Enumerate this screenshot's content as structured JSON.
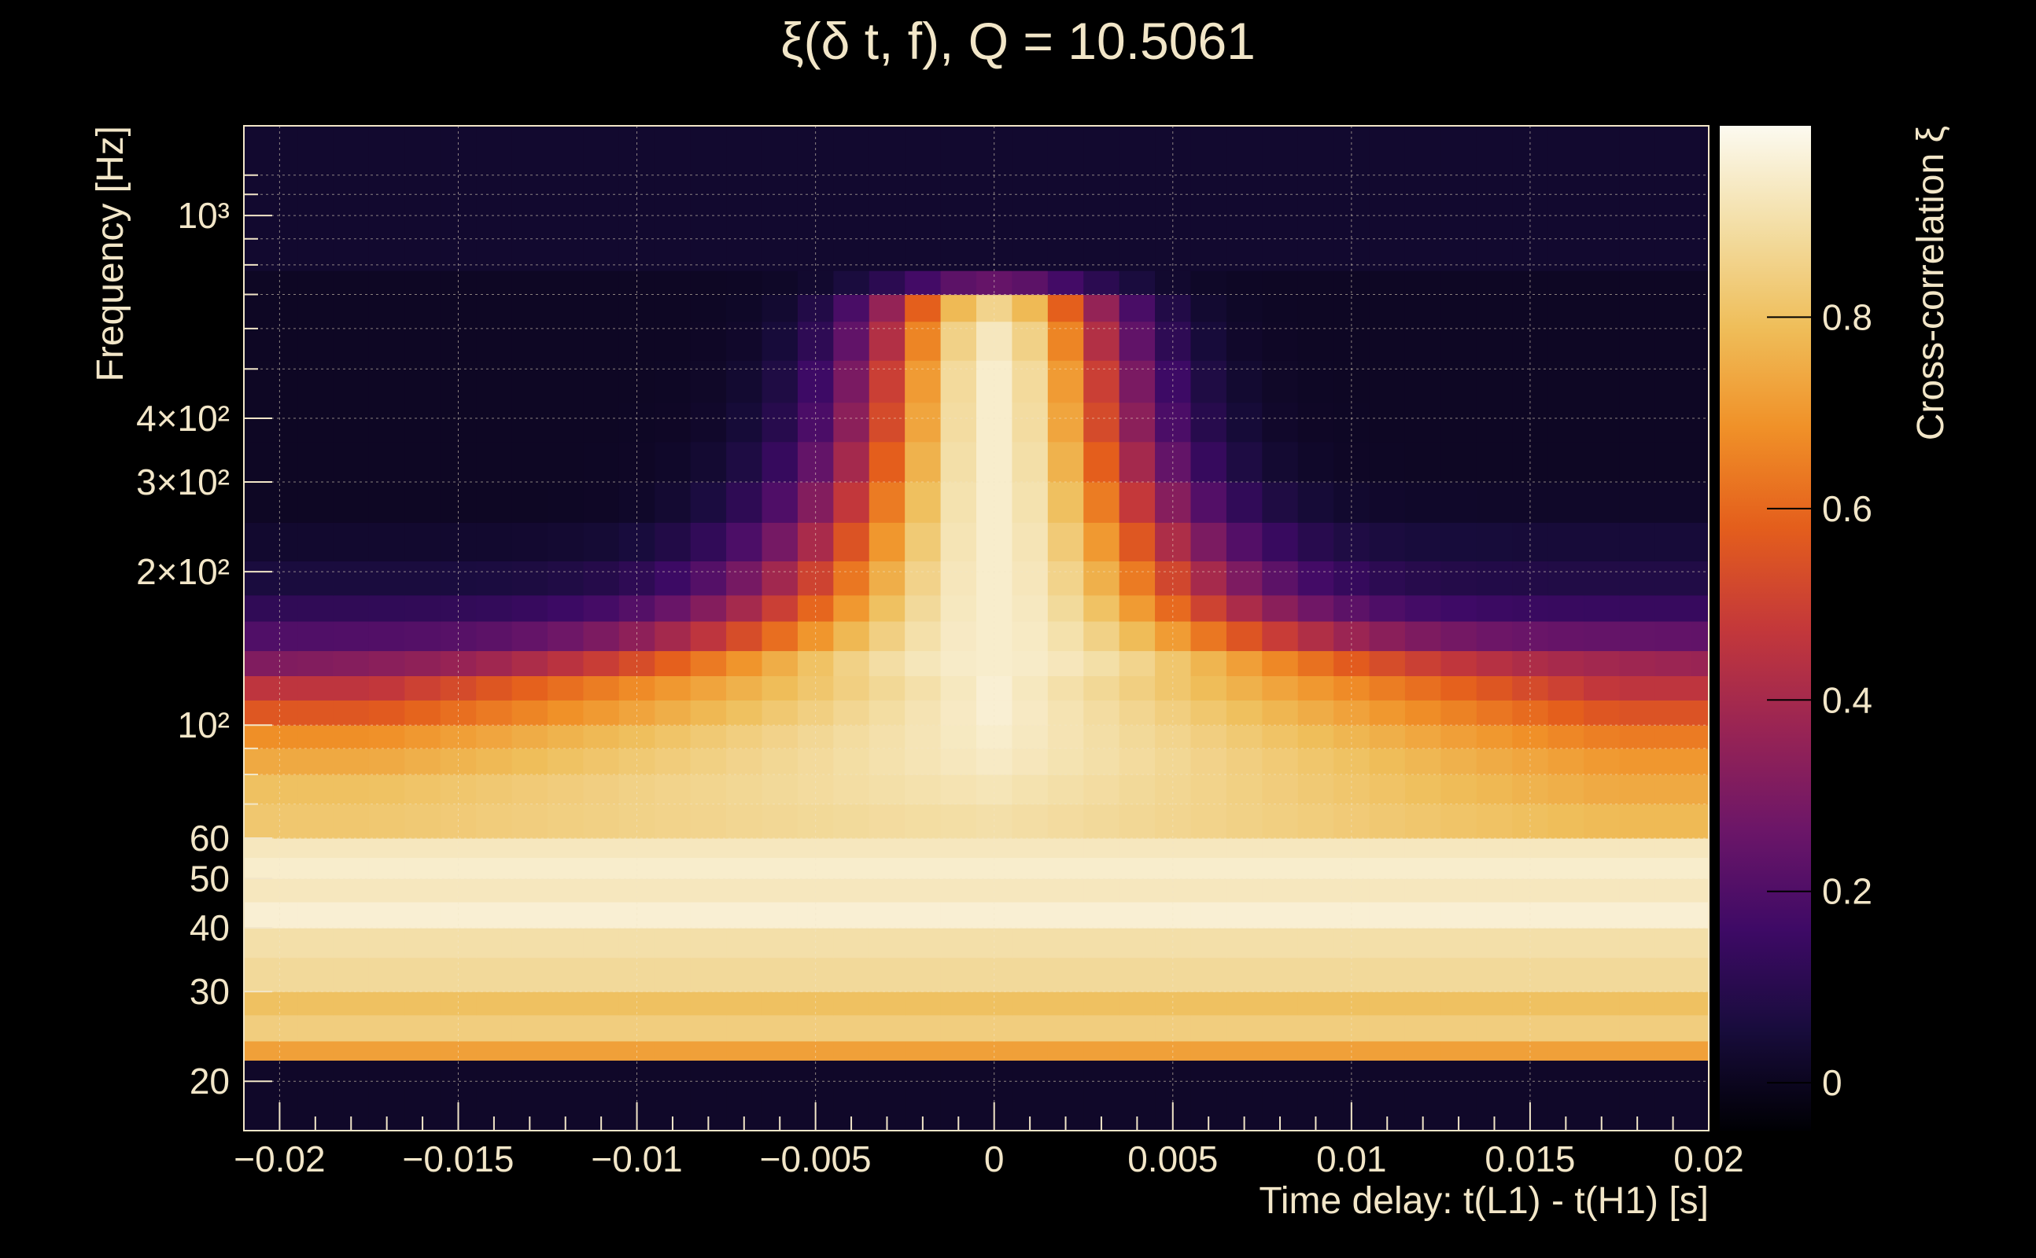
{
  "chart_data": {
    "type": "heatmap",
    "title": "ξ(δ t, f), Q = 10.5061",
    "xlabel": "Time delay: t(L1) - t(H1) [s]",
    "ylabel": "Frequency [Hz]",
    "colorbar_label": "Cross-correlation ξ",
    "xlim": [
      -0.021,
      0.02
    ],
    "ylim": [
      16,
      1500
    ],
    "y_scale": "log",
    "z_range": [
      -0.05,
      1.0
    ],
    "grid": true,
    "x_ticks": [
      {
        "value": -0.02,
        "label": "−0.02"
      },
      {
        "value": -0.015,
        "label": "−0.015"
      },
      {
        "value": -0.01,
        "label": "−0.01"
      },
      {
        "value": -0.005,
        "label": "−0.005"
      },
      {
        "value": 0,
        "label": "0"
      },
      {
        "value": 0.005,
        "label": "0.005"
      },
      {
        "value": 0.01,
        "label": "0.01"
      },
      {
        "value": 0.015,
        "label": "0.015"
      },
      {
        "value": 0.02,
        "label": "0.02"
      }
    ],
    "y_ticks": [
      {
        "value": 20,
        "label": "20"
      },
      {
        "value": 30,
        "label": "30"
      },
      {
        "value": 40,
        "label": "40"
      },
      {
        "value": 50,
        "label": "50"
      },
      {
        "value": 60,
        "label": "60"
      },
      {
        "value": 100,
        "label": "10²"
      },
      {
        "value": 200,
        "label": "2×10²"
      },
      {
        "value": 300,
        "label": "3×10²"
      },
      {
        "value": 400,
        "label": "4×10²"
      },
      {
        "value": 1000,
        "label": "10³"
      }
    ],
    "colorbar_ticks": [
      {
        "value": 0,
        "label": "0"
      },
      {
        "value": 0.2,
        "label": "0.2"
      },
      {
        "value": 0.4,
        "label": "0.4"
      },
      {
        "value": 0.6,
        "label": "0.6"
      },
      {
        "value": 0.8,
        "label": "0.8"
      }
    ],
    "x_bins": [
      -0.02,
      -0.019,
      -0.018,
      -0.017,
      -0.016,
      -0.015,
      -0.014,
      -0.013,
      -0.012,
      -0.011,
      -0.01,
      -0.009,
      -0.008,
      -0.007,
      -0.006,
      -0.005,
      -0.004,
      -0.003,
      -0.002,
      -0.001,
      0,
      0.001,
      0.002,
      0.003,
      0.004,
      0.005,
      0.006,
      0.007,
      0.008,
      0.009,
      0.01,
      0.011,
      0.012,
      0.013,
      0.014,
      0.015,
      0.016,
      0.017,
      0.018,
      0.019,
      0.02
    ],
    "freq_bands": [
      {
        "f_low": 16,
        "f_high": 22,
        "profile": "const",
        "values": [
          0.02
        ]
      },
      {
        "f_low": 22,
        "f_high": 24,
        "profile": "const",
        "values": [
          0.72
        ]
      },
      {
        "f_low": 24,
        "f_high": 27,
        "profile": "const",
        "values": [
          0.84
        ]
      },
      {
        "f_low": 27,
        "f_high": 30,
        "profile": "const",
        "values": [
          0.8
        ]
      },
      {
        "f_low": 30,
        "f_high": 35,
        "profile": "const",
        "values": [
          0.88
        ]
      },
      {
        "f_low": 35,
        "f_high": 40,
        "profile": "const",
        "values": [
          0.9
        ]
      },
      {
        "f_low": 40,
        "f_high": 45,
        "profile": "const",
        "values": [
          0.96
        ]
      },
      {
        "f_low": 45,
        "f_high": 50,
        "profile": "const",
        "values": [
          0.93
        ]
      },
      {
        "f_low": 50,
        "f_high": 55,
        "profile": "const",
        "values": [
          0.95
        ]
      },
      {
        "f_low": 55,
        "f_high": 60,
        "profile": "const",
        "values": [
          0.93
        ]
      },
      {
        "f_low": 60,
        "f_high": 70,
        "profile": "wide",
        "values": [
          0.82,
          0.82,
          0.9,
          0.78
        ]
      },
      {
        "f_low": 70,
        "f_high": 80,
        "profile": "wide",
        "values": [
          0.8,
          0.8,
          0.92,
          0.74
        ]
      },
      {
        "f_low": 80,
        "f_high": 90,
        "profile": "wide",
        "values": [
          0.74,
          0.78,
          0.94,
          0.7
        ]
      },
      {
        "f_low": 90,
        "f_high": 100,
        "profile": "wide",
        "values": [
          0.68,
          0.75,
          0.95,
          0.64
        ]
      },
      {
        "f_low": 100,
        "f_high": 112,
        "profile": "wide",
        "values": [
          0.56,
          0.62,
          0.96,
          0.55
        ]
      },
      {
        "f_low": 112,
        "f_high": 125,
        "profile": "wide",
        "values": [
          0.46,
          0.52,
          0.96,
          0.46
        ]
      },
      {
        "f_low": 125,
        "f_high": 140,
        "profile": "gauss",
        "values": [
          0.3,
          0.36,
          0.95,
          0.014
        ]
      },
      {
        "f_low": 140,
        "f_high": 160,
        "profile": "gauss",
        "values": [
          0.2,
          0.24,
          0.95,
          0.011
        ]
      },
      {
        "f_low": 160,
        "f_high": 180,
        "profile": "gauss",
        "values": [
          0.12,
          0.14,
          0.95,
          0.0095
        ]
      },
      {
        "f_low": 180,
        "f_high": 210,
        "profile": "gauss",
        "values": [
          0.06,
          0.08,
          0.95,
          0.0085
        ]
      },
      {
        "f_low": 210,
        "f_high": 250,
        "profile": "gauss",
        "values": [
          0.03,
          0.05,
          0.95,
          0.0075
        ]
      },
      {
        "f_low": 250,
        "f_high": 300,
        "profile": "gauss",
        "values": [
          0.01,
          0.02,
          0.95,
          0.0067
        ]
      },
      {
        "f_low": 300,
        "f_high": 360,
        "profile": "gauss",
        "values": [
          0.01,
          0.01,
          0.95,
          0.006
        ]
      },
      {
        "f_low": 360,
        "f_high": 430,
        "profile": "gauss",
        "values": [
          0.01,
          0.01,
          0.95,
          0.0055
        ]
      },
      {
        "f_low": 430,
        "f_high": 520,
        "profile": "gauss",
        "values": [
          0.01,
          0.01,
          0.95,
          0.0052
        ]
      },
      {
        "f_low": 520,
        "f_high": 620,
        "profile": "gauss",
        "values": [
          0.01,
          0.01,
          0.93,
          0.0048
        ]
      },
      {
        "f_low": 620,
        "f_high": 700,
        "profile": "gauss",
        "values": [
          0.01,
          0.01,
          0.86,
          0.0045
        ]
      },
      {
        "f_low": 700,
        "f_high": 780,
        "profile": "gauss",
        "values": [
          0.01,
          0.01,
          0.25,
          0.0045
        ]
      },
      {
        "f_low": 780,
        "f_high": 1500,
        "profile": "const",
        "values": [
          0.03
        ]
      }
    ]
  }
}
